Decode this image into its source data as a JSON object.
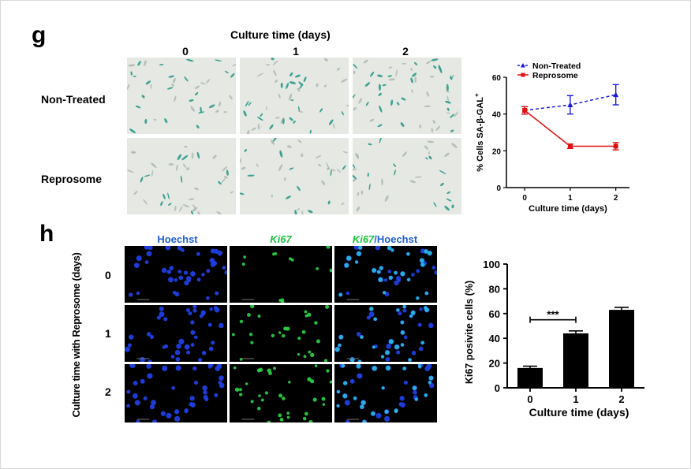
{
  "panel_g": {
    "letter": "g",
    "culture_time_title": "Culture time (days)",
    "columns": [
      "0",
      "1",
      "2"
    ],
    "rows": [
      "Non-Treated",
      "Reprosome"
    ]
  },
  "panel_h": {
    "letter": "h",
    "column_headers": {
      "hoechst": "Hoechst",
      "ki67": "Ki67",
      "merge_ki67": "Ki67",
      "merge_rest": "/Hoechst"
    },
    "row_axis_label": "Culture time with Reprosome (days)",
    "rows": [
      "0",
      "1",
      "2"
    ]
  },
  "colors": {
    "hoechst_blue": "#1f5fd6",
    "ki67_green": "#18c43c",
    "non_treated": "#1c1cd8",
    "reprosome": "#e01010"
  },
  "chart_data": [
    {
      "type": "line",
      "x": [
        0,
        1,
        2
      ],
      "xlabel": "Culture time (days)",
      "ylabel": "% Cells SA-β-GAL",
      "ylabel_sup": "+",
      "ylim": [
        0,
        60
      ],
      "yticks": [
        0,
        20,
        40,
        60
      ],
      "xticks": [
        0,
        1,
        2
      ],
      "legend_position": "top-left",
      "series": [
        {
          "name": "Non-Treated",
          "values": [
            42,
            45,
            50.5
          ],
          "errors": [
            2,
            5,
            5.5
          ],
          "color": "#1c1cd8",
          "style": "dashed",
          "marker": "triangle"
        },
        {
          "name": "Reprosome",
          "values": [
            42,
            22.5,
            22.5
          ],
          "errors": [
            2,
            1.2,
            2
          ],
          "color": "#e01010",
          "style": "solid",
          "marker": "square"
        }
      ]
    },
    {
      "type": "bar",
      "categories": [
        "0",
        "1",
        "2"
      ],
      "values": [
        16,
        44,
        63
      ],
      "errors": [
        1.5,
        2,
        2
      ],
      "xlabel": "Culture time (days)",
      "ylabel": "Ki67 posivite cells  (%)",
      "ylim": [
        0,
        100
      ],
      "yticks": [
        0,
        20,
        40,
        60,
        80,
        100
      ],
      "significance": {
        "from": "0",
        "to": "1",
        "label": "***"
      }
    }
  ]
}
